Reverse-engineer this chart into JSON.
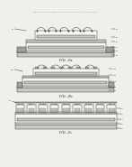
{
  "background": "#f0f0eb",
  "header_text": "Patent Application Publication   May 20, 2021 Sheet 2 of 11   US 2021/0366848 A1",
  "fig_labels": [
    "FIG. 2a",
    "FIG. 2b",
    "FIG. 2c"
  ],
  "line_color": "#404040",
  "fill_light": "#c8c8c4",
  "fill_medium": "#a0a09c",
  "fill_white": "#f8f8f5",
  "fill_dark": "#888884"
}
